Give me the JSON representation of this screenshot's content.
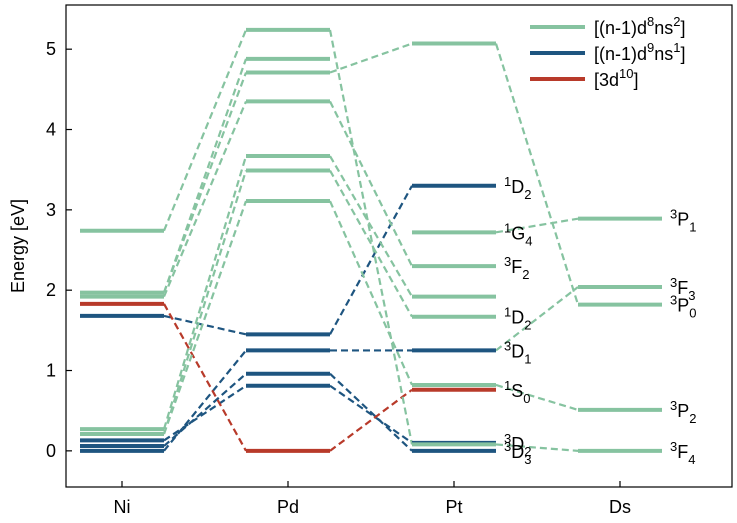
{
  "chart_data": {
    "type": "line",
    "ylabel": "Energy [eV]",
    "ylim": [
      -0.45,
      5.55
    ],
    "y_ticks": [
      0,
      1,
      2,
      3,
      4,
      5
    ],
    "categories": [
      "Ni",
      "Pd",
      "Pt",
      "Ds"
    ],
    "grid": false,
    "legend_position": "top-right",
    "colors": {
      "d8s2": "#86c3a0",
      "d9s1": "#1e5580",
      "d10": "#b83a2a"
    },
    "legend": [
      {
        "key": "d8s2",
        "pre": "[(n-1)d",
        "sup1": "8",
        "mid": "ns",
        "sup2": "2",
        "post": "]"
      },
      {
        "key": "d9s1",
        "pre": "[(n-1)d",
        "sup1": "9",
        "mid": "ns",
        "sup2": "1",
        "post": "]"
      },
      {
        "key": "d10",
        "pre": "[3d",
        "sup1": "10",
        "mid": "",
        "sup2": "",
        "post": "]"
      }
    ],
    "elements": [
      {
        "name": "Ni",
        "levels": [
          {
            "config": "d9s1",
            "energy": 0.0
          },
          {
            "config": "d9s1",
            "energy": 0.06
          },
          {
            "config": "d9s1",
            "energy": 0.13
          },
          {
            "config": "d8s2",
            "energy": 0.21
          },
          {
            "config": "d8s2",
            "energy": 0.27
          },
          {
            "config": "d9s1",
            "energy": 1.68
          },
          {
            "config": "d10",
            "energy": 1.83
          },
          {
            "config": "d8s2",
            "energy": 1.92
          },
          {
            "config": "d8s2",
            "energy": 1.97
          },
          {
            "config": "d8s2",
            "energy": 2.74
          }
        ]
      },
      {
        "name": "Pd",
        "levels": [
          {
            "config": "d10",
            "energy": 0.0
          },
          {
            "config": "d9s1",
            "energy": 0.81
          },
          {
            "config": "d9s1",
            "energy": 0.96
          },
          {
            "config": "d9s1",
            "energy": 1.25
          },
          {
            "config": "d9s1",
            "energy": 1.45
          },
          {
            "config": "d8s2",
            "energy": 3.11
          },
          {
            "config": "d8s2",
            "energy": 3.49
          },
          {
            "config": "d8s2",
            "energy": 3.67
          },
          {
            "config": "d8s2",
            "energy": 4.35
          },
          {
            "config": "d8s2",
            "energy": 4.71
          },
          {
            "config": "d8s2",
            "energy": 4.88
          },
          {
            "config": "d8s2",
            "energy": 5.24
          }
        ]
      },
      {
        "name": "Pt",
        "levels": [
          {
            "config": "d9s1",
            "energy": 0.0,
            "term": {
              "sym": "D",
              "mult": "3",
              "j": "3"
            }
          },
          {
            "config": "d9s1",
            "energy": 0.1,
            "term": {
              "sym": "D",
              "mult": "3",
              "j": "2"
            }
          },
          {
            "config": "d8s2",
            "energy": 0.08
          },
          {
            "config": "d10",
            "energy": 0.76,
            "term": {
              "sym": "S",
              "mult": "1",
              "j": "0"
            }
          },
          {
            "config": "d8s2",
            "energy": 0.82
          },
          {
            "config": "d9s1",
            "energy": 1.25,
            "term": {
              "sym": "D",
              "mult": "3",
              "j": "1"
            }
          },
          {
            "config": "d8s2",
            "energy": 1.67,
            "term": {
              "sym": "D",
              "mult": "1",
              "j": "2"
            }
          },
          {
            "config": "d8s2",
            "energy": 1.92
          },
          {
            "config": "d8s2",
            "energy": 2.3,
            "term": {
              "sym": "F",
              "mult": "3",
              "j": "2"
            }
          },
          {
            "config": "d8s2",
            "energy": 2.72,
            "term": {
              "sym": "G",
              "mult": "1",
              "j": "4"
            }
          },
          {
            "config": "d9s1",
            "energy": 3.3,
            "term": {
              "sym": "D",
              "mult": "1",
              "j": "2"
            }
          },
          {
            "config": "d8s2",
            "energy": 5.07
          }
        ]
      },
      {
        "name": "Ds",
        "levels": [
          {
            "config": "d8s2",
            "energy": 0.0,
            "term": {
              "sym": "F",
              "mult": "3",
              "j": "4"
            }
          },
          {
            "config": "d8s2",
            "energy": 0.51,
            "term": {
              "sym": "P",
              "mult": "3",
              "j": "2"
            }
          },
          {
            "config": "d8s2",
            "energy": 1.82,
            "term": {
              "sym": "P",
              "mult": "3",
              "j": "0"
            }
          },
          {
            "config": "d8s2",
            "energy": 2.04,
            "term": {
              "sym": "F",
              "mult": "3",
              "j": "3"
            }
          },
          {
            "config": "d8s2",
            "energy": 2.89,
            "term": {
              "sym": "P",
              "mult": "3",
              "j": "1"
            }
          }
        ]
      }
    ],
    "connectors": [
      {
        "config": "d9s1",
        "from": [
          0,
          0.0
        ],
        "to": [
          1,
          1.25
        ]
      },
      {
        "config": "d9s1",
        "from": [
          0,
          0.06
        ],
        "to": [
          1,
          0.96
        ]
      },
      {
        "config": "d9s1",
        "from": [
          0,
          0.13
        ],
        "to": [
          1,
          0.81
        ]
      },
      {
        "config": "d9s1",
        "from": [
          0,
          1.68
        ],
        "to": [
          1,
          1.45
        ]
      },
      {
        "config": "d10",
        "from": [
          0,
          1.83
        ],
        "to": [
          1,
          0.0
        ]
      },
      {
        "config": "d8s2",
        "from": [
          0,
          0.21
        ],
        "to": [
          1,
          3.11
        ]
      },
      {
        "config": "d8s2",
        "from": [
          0,
          0.21
        ],
        "to": [
          1,
          3.49
        ]
      },
      {
        "config": "d8s2",
        "from": [
          0,
          0.27
        ],
        "to": [
          1,
          3.67
        ]
      },
      {
        "config": "d8s2",
        "from": [
          0,
          1.92
        ],
        "to": [
          1,
          4.35
        ]
      },
      {
        "config": "d8s2",
        "from": [
          0,
          1.97
        ],
        "to": [
          1,
          4.71
        ]
      },
      {
        "config": "d8s2",
        "from": [
          0,
          1.97
        ],
        "to": [
          1,
          4.88
        ]
      },
      {
        "config": "d8s2",
        "from": [
          0,
          2.74
        ],
        "to": [
          1,
          5.24
        ]
      },
      {
        "config": "d9s1",
        "from": [
          1,
          1.45
        ],
        "to": [
          2,
          3.3
        ]
      },
      {
        "config": "d9s1",
        "from": [
          1,
          1.25
        ],
        "to": [
          2,
          1.25
        ]
      },
      {
        "config": "d9s1",
        "from": [
          1,
          0.96
        ],
        "to": [
          2,
          0.0
        ]
      },
      {
        "config": "d9s1",
        "from": [
          1,
          0.81
        ],
        "to": [
          2,
          0.1
        ]
      },
      {
        "config": "d10",
        "from": [
          1,
          0.0
        ],
        "to": [
          2,
          0.76
        ]
      },
      {
        "config": "d8s2",
        "from": [
          1,
          4.71
        ],
        "to": [
          2,
          5.07
        ]
      },
      {
        "config": "d8s2",
        "from": [
          1,
          4.35
        ],
        "to": [
          2,
          2.3
        ]
      },
      {
        "config": "d8s2",
        "from": [
          1,
          3.67
        ],
        "to": [
          2,
          1.92
        ]
      },
      {
        "config": "d8s2",
        "from": [
          1,
          3.49
        ],
        "to": [
          2,
          1.67
        ]
      },
      {
        "config": "d8s2",
        "from": [
          1,
          3.11
        ],
        "to": [
          2,
          0.82
        ]
      },
      {
        "config": "d8s2",
        "from": [
          1,
          5.24
        ],
        "to": [
          2,
          0.08
        ]
      },
      {
        "config": "d8s2",
        "from": [
          2,
          5.07
        ],
        "to": [
          3,
          1.82
        ]
      },
      {
        "config": "d8s2",
        "from": [
          2,
          2.72
        ],
        "to": [
          3,
          2.89
        ]
      },
      {
        "config": "d8s2",
        "from": [
          2,
          1.25
        ],
        "to": [
          3,
          2.04
        ]
      },
      {
        "config": "d8s2",
        "from": [
          2,
          0.82
        ],
        "to": [
          3,
          0.51
        ]
      },
      {
        "config": "d8s2",
        "from": [
          2,
          0.08
        ],
        "to": [
          3,
          0.0
        ]
      }
    ]
  }
}
